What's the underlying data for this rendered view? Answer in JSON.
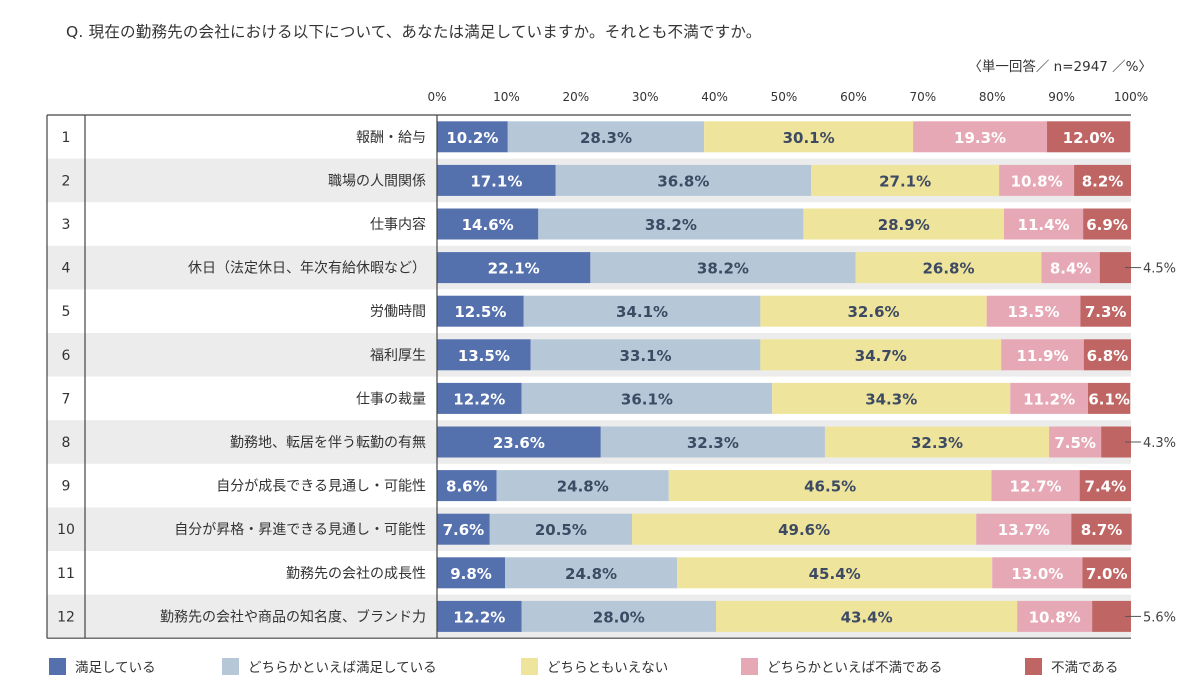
{
  "title": "Q. 現在の勤務先の会社における以下について、あなたは満足していますか。それとも不満ですか。",
  "note": "〈単一回答／ n=2947 ／%〉",
  "colors": {
    "satisfied": "#5470ad",
    "somewhat_satisfied": "#b6c8d8",
    "neutral": "#efe49b",
    "somewhat_dissatisfied": "#e7a8b6",
    "dissatisfied": "#bf6665",
    "row_stripe": "#ececec",
    "frame": "#444444"
  },
  "legend": [
    {
      "label": "満足している",
      "color": "#5470ad"
    },
    {
      "label": "どちらかといえば満足している",
      "color": "#b6c8d8"
    },
    {
      "label": "どちらともいえない",
      "color": "#efe49b"
    },
    {
      "label": "どちらかといえば不満である",
      "color": "#e7a8b6"
    },
    {
      "label": "不満である",
      "color": "#bf6665"
    }
  ],
  "chart_data": {
    "type": "bar",
    "orientation": "horizontal",
    "stacked": true,
    "x_ticks": [
      "0%",
      "10%",
      "20%",
      "30%",
      "40%",
      "50%",
      "60%",
      "70%",
      "80%",
      "90%",
      "100%"
    ],
    "xlim": [
      0,
      100
    ],
    "row_numbers": [
      "1",
      "2",
      "3",
      "4",
      "5",
      "6",
      "7",
      "8",
      "9",
      "10",
      "11",
      "12"
    ],
    "categories": [
      "報酬・給与",
      "職場の人間関係",
      "仕事内容",
      "休日（法定休日、年次有給休暇など）",
      "労働時間",
      "福利厚生",
      "仕事の裁量",
      "勤務地、転居を伴う転勤の有無",
      "自分が成長できる見通し・可能性",
      "自分が昇格・昇進できる見通し・可能性",
      "勤務先の会社の成長性",
      "勤務先の会社や商品の知名度、ブランド力"
    ],
    "series": [
      {
        "name": "満足している",
        "color": "#5470ad",
        "values": [
          10.2,
          17.1,
          14.6,
          22.1,
          12.5,
          13.5,
          12.2,
          23.6,
          8.6,
          7.6,
          9.8,
          12.2
        ]
      },
      {
        "name": "どちらかといえば満足している",
        "color": "#b6c8d8",
        "values": [
          28.3,
          36.8,
          38.2,
          38.2,
          34.1,
          33.1,
          36.1,
          32.3,
          24.8,
          20.5,
          24.8,
          28.0
        ]
      },
      {
        "name": "どちらともいえない",
        "color": "#efe49b",
        "values": [
          30.1,
          27.1,
          28.9,
          26.8,
          32.6,
          34.7,
          34.3,
          32.3,
          46.5,
          49.6,
          45.4,
          43.4
        ]
      },
      {
        "name": "どちらかといえば不満である",
        "color": "#e7a8b6",
        "values": [
          19.3,
          10.8,
          11.4,
          8.4,
          13.5,
          11.9,
          11.2,
          7.5,
          12.7,
          13.7,
          13.0,
          10.8
        ]
      },
      {
        "name": "不満である",
        "color": "#bf6665",
        "values": [
          12.0,
          8.2,
          6.9,
          4.5,
          7.3,
          6.8,
          6.1,
          4.3,
          7.4,
          8.7,
          7.0,
          5.6
        ]
      }
    ],
    "value_labels": [
      [
        "10.2%",
        "28.3%",
        "30.1%",
        "19.3%",
        "12.0%"
      ],
      [
        "17.1%",
        "36.8%",
        "27.1%",
        "10.8%",
        "8.2%"
      ],
      [
        "14.6%",
        "38.2%",
        "28.9%",
        "11.4%",
        "6.9%"
      ],
      [
        "22.1%",
        "38.2%",
        "26.8%",
        "8.4%",
        "4.5%"
      ],
      [
        "12.5%",
        "34.1%",
        "32.6%",
        "13.5%",
        "7.3%"
      ],
      [
        "13.5%",
        "33.1%",
        "34.7%",
        "11.9%",
        "6.8%"
      ],
      [
        "12.2%",
        "36.1%",
        "34.3%",
        "11.2%",
        "6.1%"
      ],
      [
        "23.6%",
        "32.3%",
        "32.3%",
        "7.5%",
        "4.3%"
      ],
      [
        "8.6%",
        "24.8%",
        "46.5%",
        "12.7%",
        "7.4%"
      ],
      [
        "7.6%",
        "20.5%",
        "49.6%",
        "13.7%",
        "8.7%"
      ],
      [
        "9.8%",
        "24.8%",
        "45.4%",
        "13.0%",
        "7.0%"
      ],
      [
        "12.2%",
        "28.0%",
        "43.4%",
        "10.8%",
        "5.6%"
      ]
    ],
    "callouts": [
      {
        "row": 3,
        "series": 4,
        "label": "4.5%"
      },
      {
        "row": 7,
        "series": 4,
        "label": "4.3%"
      },
      {
        "row": 11,
        "series": 4,
        "label": "5.6%"
      }
    ]
  }
}
